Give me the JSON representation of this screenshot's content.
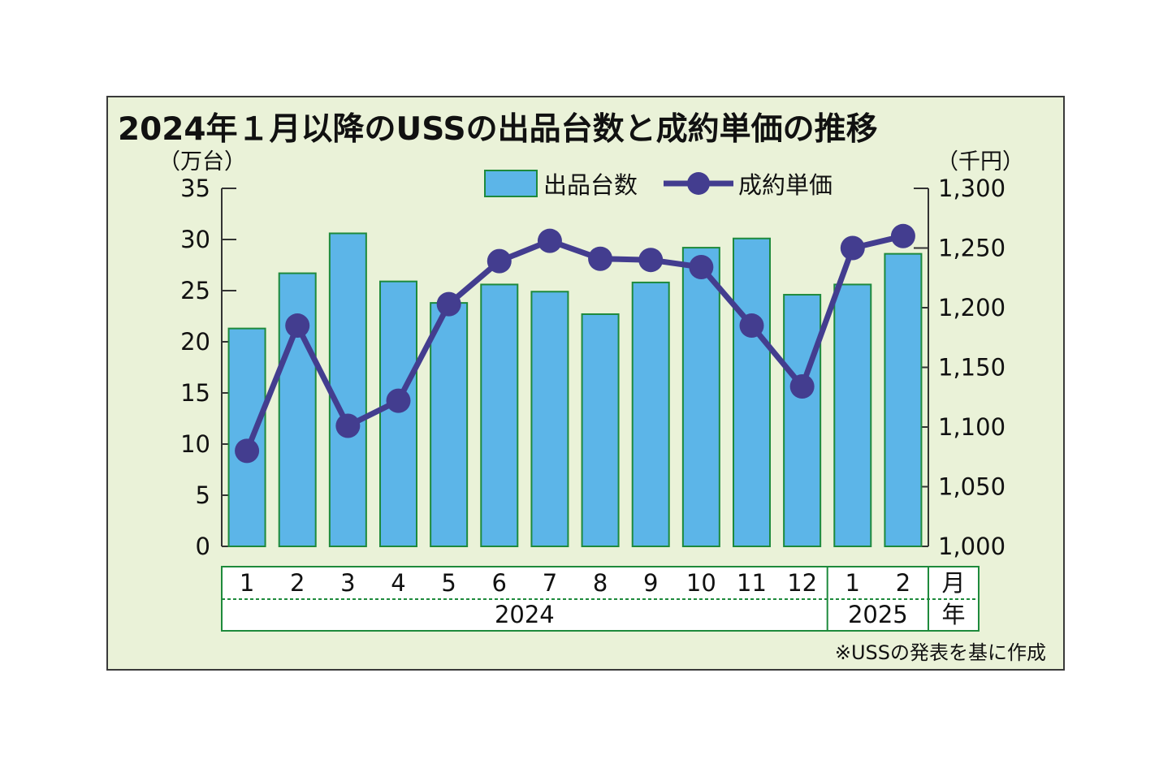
{
  "chart_data": {
    "type": "bar",
    "title": "2024年１月以降のUSSの出品台数と成約単価の推移",
    "left_unit": "（万台）",
    "right_unit": "（千円）",
    "left_axis": {
      "min": 0,
      "max": 35,
      "ticks": [
        "0",
        "5",
        "10",
        "15",
        "20",
        "25",
        "30",
        "35"
      ]
    },
    "right_axis": {
      "min": 1000,
      "max": 1300,
      "ticks": [
        "1,000",
        "1,050",
        "1,100",
        "1,150",
        "1,200",
        "1,250",
        "1,300"
      ]
    },
    "months": [
      "1",
      "2",
      "3",
      "4",
      "5",
      "6",
      "7",
      "8",
      "9",
      "10",
      "11",
      "12",
      "1",
      "2"
    ],
    "month_unit": "月",
    "years": [
      {
        "label": "2024",
        "span": 12
      },
      {
        "label": "2025",
        "span": 2
      }
    ],
    "year_unit": "年",
    "series": [
      {
        "name": "出品台数",
        "type": "bar",
        "axis": "left",
        "values": [
          21.3,
          26.7,
          30.6,
          25.9,
          23.8,
          25.6,
          24.9,
          22.7,
          25.8,
          29.2,
          30.1,
          24.6,
          25.6,
          28.6
        ]
      },
      {
        "name": "成約単価",
        "type": "line",
        "axis": "right",
        "values": [
          1080,
          1185,
          1101,
          1122,
          1203,
          1239,
          1256,
          1241,
          1240,
          1234,
          1185,
          1134,
          1250,
          1260
        ]
      }
    ],
    "colors": {
      "bar": "#5cb5e8",
      "bar_border": "#1e8a3c",
      "line": "#433d8f",
      "panel": "#eaf2d8",
      "grid_box": "#1e8a3c"
    },
    "note": "※USSの発表を基に作成"
  }
}
